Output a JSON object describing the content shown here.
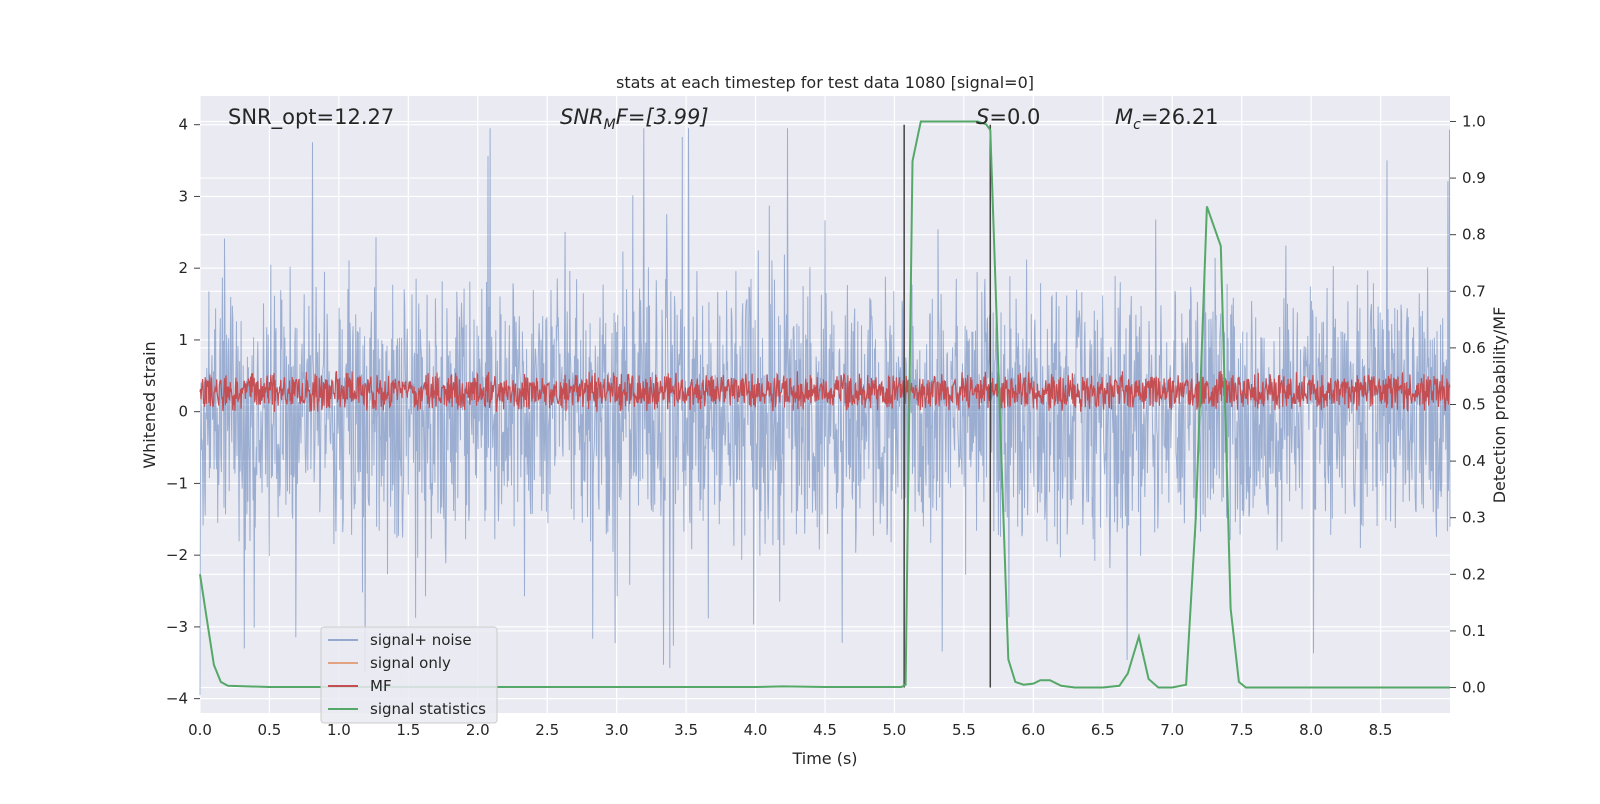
{
  "chart_data": {
    "type": "line",
    "title": "stats at each timestep for test data 1080 [signal=0]",
    "xlabel": "Time (s)",
    "ylabel_left": "Whitened strain",
    "ylabel_right": "Detection probability/MF",
    "xlim": [
      0.0,
      9.0
    ],
    "ylim_left": [
      -4.2,
      4.4
    ],
    "ylim_right": [
      -0.045,
      1.045
    ],
    "xticks": [
      "0.0",
      "0.5",
      "1.0",
      "1.5",
      "2.0",
      "2.5",
      "3.0",
      "3.5",
      "4.0",
      "4.5",
      "5.0",
      "5.5",
      "6.0",
      "6.5",
      "7.0",
      "7.5",
      "8.0",
      "8.5"
    ],
    "yticks_left": [
      "−4",
      "−3",
      "−2",
      "−1",
      "0",
      "1",
      "2",
      "3",
      "4"
    ],
    "yticks_right": [
      "0.0",
      "0.1",
      "0.2",
      "0.3",
      "0.4",
      "0.5",
      "0.6",
      "0.7",
      "0.8",
      "0.9",
      "1.0"
    ],
    "grid": true,
    "legend_position": "lower-left",
    "annotations": {
      "snr_opt": "SNR_opt=12.27",
      "snr_mf_main": "SNR",
      "snr_mf_sub": "M",
      "snr_mf_rest": "F=[3.99]",
      "s_label": "S",
      "s_rest": "=0.0",
      "mc_main": "M",
      "mc_sub": "c",
      "mc_rest": "=26.21"
    },
    "vertical_lines_x": [
      5.07,
      5.69
    ],
    "series": [
      {
        "name": "signal+ noise",
        "color": "#4c72b0",
        "style": "noise band, amplitude ±2 to ±4"
      },
      {
        "name": "signal only",
        "color": "#dd8452",
        "values": []
      },
      {
        "name": "MF",
        "color": "#c44e52",
        "style": "band 0.0 to 0.8"
      },
      {
        "name": "signal statistics",
        "color": "#55a868",
        "x": [
          0.0,
          0.05,
          0.1,
          0.15,
          0.2,
          0.5,
          1.0,
          2.0,
          3.0,
          4.0,
          4.2,
          4.5,
          5.0,
          5.05,
          5.08,
          5.13,
          5.19,
          5.3,
          5.5,
          5.6,
          5.66,
          5.69,
          5.75,
          5.82,
          5.87,
          5.93,
          6.0,
          6.05,
          6.12,
          6.2,
          6.3,
          6.5,
          6.62,
          6.68,
          6.76,
          6.83,
          6.9,
          7.0,
          7.1,
          7.17,
          7.25,
          7.35,
          7.42,
          7.48,
          7.53,
          8.0,
          9.0
        ],
        "y": [
          0.2,
          0.12,
          0.04,
          0.01,
          0.003,
          0.001,
          0.001,
          0.001,
          0.001,
          0.001,
          0.002,
          0.001,
          0.001,
          0.001,
          0.005,
          0.93,
          1.0,
          1.0,
          1.0,
          1.0,
          0.995,
          0.985,
          0.55,
          0.05,
          0.01,
          0.005,
          0.007,
          0.013,
          0.013,
          0.003,
          0.0,
          0.0,
          0.003,
          0.025,
          0.09,
          0.015,
          0.0,
          0.0,
          0.005,
          0.3,
          0.85,
          0.78,
          0.14,
          0.01,
          0.0,
          0.0,
          0.0
        ]
      }
    ]
  }
}
